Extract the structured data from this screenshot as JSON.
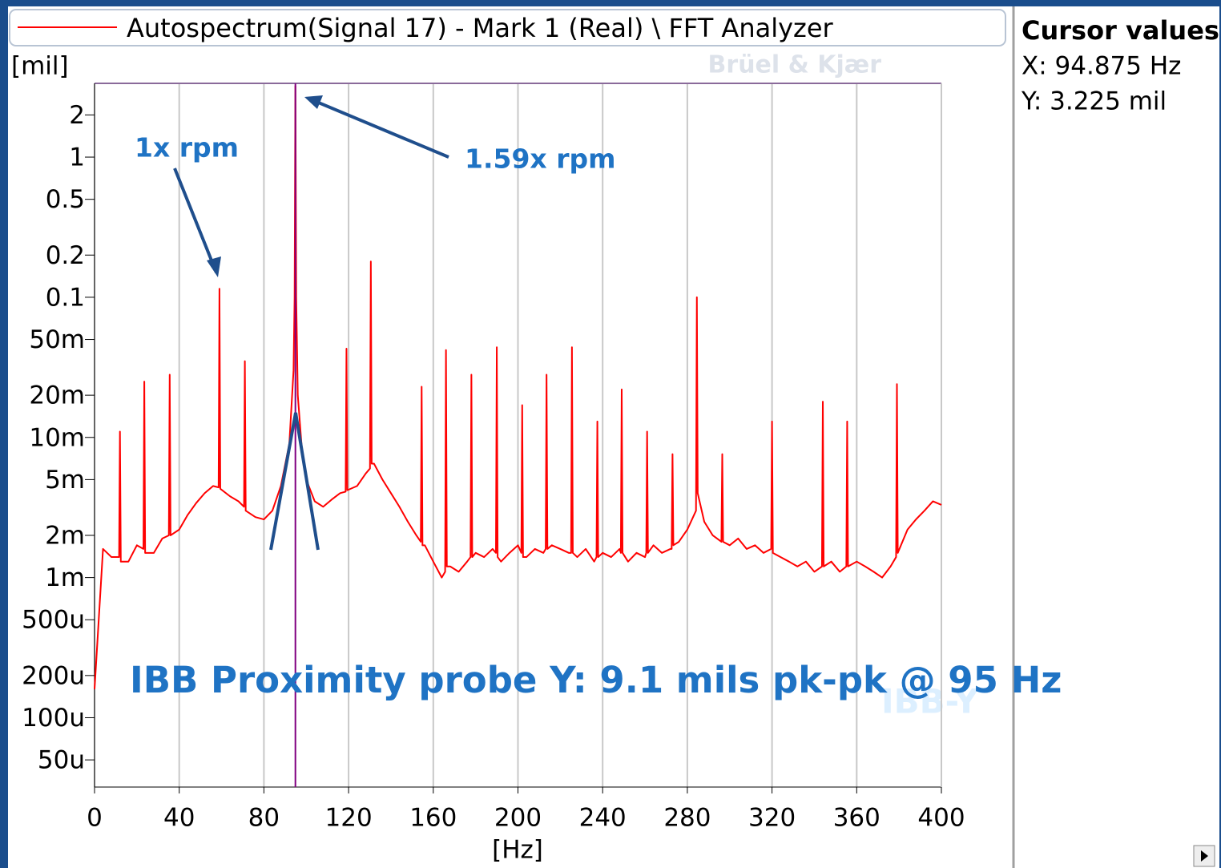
{
  "chart_data": {
    "type": "line",
    "yscale": "log",
    "y_label": "[mil]",
    "x_label": "[Hz]",
    "logo": "Brüel & Kjær",
    "watermark": "IBB-Y",
    "annotations": [
      "1x rpm",
      "1.59x rpm",
      "IBB Proximity probe Y: 9.1 mils pk-pk @ 95 Hz"
    ],
    "cursor": {
      "title": "Cursor values",
      "x_text": "X: 94.875 Hz",
      "y_text": "Y: 3.225 mil",
      "x": 94.875,
      "color": "#800080"
    },
    "xlim": [
      0,
      400
    ],
    "xticks": [
      0,
      40,
      80,
      120,
      160,
      200,
      240,
      280,
      320,
      360,
      400
    ],
    "ylim": [
      3.2e-05,
      3.36
    ],
    "yticks": [
      2,
      1,
      0.5,
      0.2,
      0.1,
      {
        "value": 0.05,
        "label": "50m"
      },
      {
        "value": 0.02,
        "label": "20m"
      },
      {
        "value": 0.01,
        "label": "10m"
      },
      {
        "value": 0.005,
        "label": "5m"
      },
      {
        "value": 0.002,
        "label": "2m"
      },
      {
        "value": 0.001,
        "label": "1m"
      },
      {
        "value": 0.0005,
        "label": "500u"
      },
      {
        "value": 0.0002,
        "label": "200u"
      },
      {
        "value": 0.0001,
        "label": "100u"
      },
      {
        "value": 5e-05,
        "label": "50u"
      }
    ],
    "grid": true,
    "x": [
      0,
      4,
      8,
      11.6,
      12,
      12.4,
      16,
      20,
      23.1,
      23.5,
      23.9,
      28,
      32,
      35.1,
      35.5,
      35.9,
      40,
      44,
      48,
      52,
      56,
      58.6,
      59,
      59.4,
      64,
      68,
      70.6,
      71,
      71.4,
      76,
      80,
      84,
      88,
      92,
      94,
      94.5,
      94.875,
      95.25,
      96,
      98,
      100,
      104,
      108,
      112,
      116,
      118.6,
      119,
      119.4,
      124,
      128,
      130.1,
      130.5,
      130.9,
      132,
      136,
      140,
      144,
      148,
      152,
      154.1,
      154.5,
      154.9,
      156,
      160,
      164,
      165.6,
      166,
      166.4,
      168,
      172,
      176,
      177.6,
      178,
      178.4,
      180,
      184,
      188,
      189.6,
      190,
      190.4,
      192,
      196,
      200,
      201.6,
      202,
      202.4,
      204,
      208,
      212,
      213.1,
      213.5,
      213.9,
      216,
      220,
      224,
      225.1,
      225.5,
      225.9,
      228,
      232,
      236,
      237.1,
      237.5,
      237.9,
      240,
      244,
      248,
      248.6,
      249,
      249.4,
      252,
      256,
      260,
      260.6,
      261,
      261.4,
      264,
      268,
      272,
      272.6,
      273,
      273.4,
      276,
      280,
      284.1,
      284.5,
      284.9,
      288,
      292,
      296.1,
      296.5,
      296.9,
      300,
      304,
      308,
      312,
      316,
      319.6,
      320,
      320.4,
      324,
      328,
      332,
      336,
      340,
      343.6,
      344,
      344.4,
      348,
      352,
      355.1,
      355.5,
      355.9,
      360,
      364,
      368,
      372,
      376,
      378.6,
      379,
      379.4,
      384,
      388,
      392,
      396,
      400
    ],
    "series": [
      {
        "name": "Autospectrum(Signal 17) - Mark 1 (Real) \\ FFT Analyzer",
        "color": "#ff0000",
        "values": [
          0.00016,
          0.0016,
          0.0014,
          0.0014,
          0.011,
          0.0013,
          0.0013,
          0.0017,
          0.0016,
          0.025,
          0.0015,
          0.0015,
          0.0019,
          0.002,
          0.028,
          0.002,
          0.0022,
          0.0028,
          0.0034,
          0.004,
          0.0045,
          0.0044,
          0.115,
          0.0043,
          0.0038,
          0.0035,
          0.0032,
          0.035,
          0.003,
          0.0027,
          0.0026,
          0.003,
          0.0045,
          0.009,
          0.03,
          0.1,
          3.225,
          0.1,
          0.02,
          0.008,
          0.005,
          0.0035,
          0.0032,
          0.0036,
          0.004,
          0.0041,
          0.043,
          0.0042,
          0.0045,
          0.0055,
          0.006,
          0.18,
          0.0065,
          0.0065,
          0.005,
          0.004,
          0.0032,
          0.0025,
          0.002,
          0.0018,
          0.023,
          0.0017,
          0.0017,
          0.0013,
          0.001,
          0.0011,
          0.042,
          0.0012,
          0.0012,
          0.0011,
          0.0013,
          0.0014,
          0.028,
          0.0014,
          0.0015,
          0.0014,
          0.0016,
          0.0015,
          0.044,
          0.0014,
          0.0013,
          0.0015,
          0.0017,
          0.0015,
          0.017,
          0.0014,
          0.0014,
          0.0016,
          0.0015,
          0.0016,
          0.028,
          0.0016,
          0.0017,
          0.0016,
          0.0015,
          0.0015,
          0.044,
          0.0015,
          0.0014,
          0.0016,
          0.0013,
          0.0014,
          0.013,
          0.0014,
          0.0015,
          0.0014,
          0.0016,
          0.0015,
          0.022,
          0.0015,
          0.0013,
          0.0015,
          0.0014,
          0.0015,
          0.011,
          0.0015,
          0.0017,
          0.0015,
          0.0016,
          0.0016,
          0.0076,
          0.0017,
          0.0018,
          0.0022,
          0.003,
          0.1,
          0.004,
          0.0025,
          0.002,
          0.0018,
          0.0076,
          0.0018,
          0.0017,
          0.0019,
          0.0016,
          0.0017,
          0.0015,
          0.0016,
          0.013,
          0.0015,
          0.0014,
          0.0013,
          0.0012,
          0.0013,
          0.0011,
          0.0012,
          0.018,
          0.0012,
          0.0013,
          0.0011,
          0.0012,
          0.013,
          0.0012,
          0.0013,
          0.0012,
          0.0011,
          0.001,
          0.0012,
          0.0014,
          0.024,
          0.0015,
          0.0022,
          0.0026,
          0.003,
          0.0035,
          0.0033
        ]
      }
    ]
  }
}
